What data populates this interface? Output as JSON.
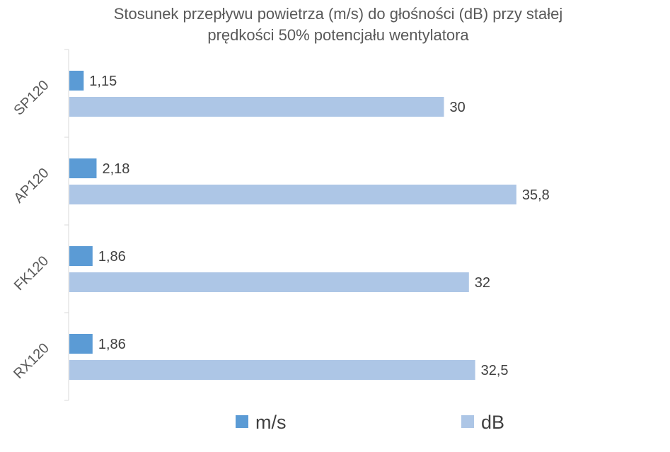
{
  "chart_data": {
    "type": "bar",
    "orientation": "horizontal",
    "title": "Stosunek przepływu powietrza (m/s) do głośności (dB) przy stałej prędkości 50% potencjału wentylatora",
    "title_lines": [
      "Stosunek przepływu powietrza (m/s) do głośności (dB) przy stałej",
      "prędkości 50% potencjału wentylatora"
    ],
    "categories": [
      "SP120",
      "AP120",
      "FK120",
      "RX120"
    ],
    "series": [
      {
        "name": "m/s",
        "color": "#5b9bd5",
        "values": [
          1.15,
          2.18,
          1.86,
          1.86
        ],
        "labels": [
          "1,15",
          "2,18",
          "1,86",
          "1,86"
        ]
      },
      {
        "name": "dB",
        "color": "#adc6e6",
        "values": [
          30,
          35.8,
          32,
          32.5
        ],
        "labels": [
          "30",
          "35,8",
          "32",
          "32,5"
        ]
      }
    ],
    "xlim": [
      0,
      40
    ],
    "xaxis_visible": false,
    "grid": false,
    "data_labels": true,
    "legend_position": "bottom"
  }
}
